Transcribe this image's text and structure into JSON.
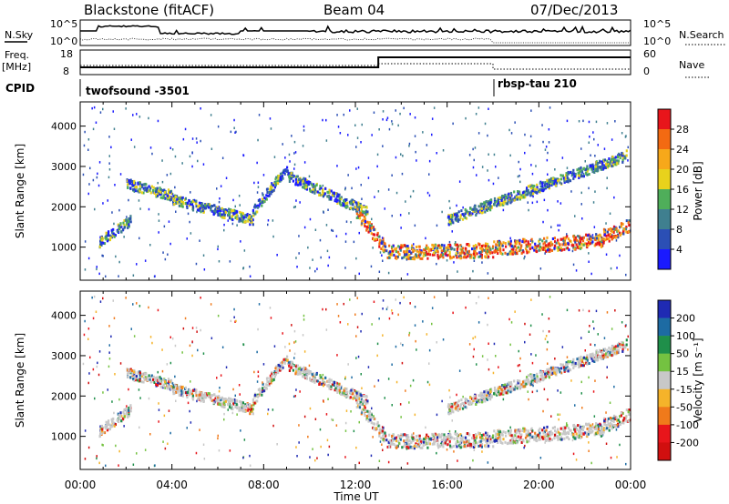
{
  "header": {
    "site": "Blackstone (fitACF)",
    "beam": "Beam 04",
    "date": "07/Dec/2013"
  },
  "strips": {
    "nsky_label": "N.Sky",
    "nsearch_label": "N.Search",
    "noise_ticks": [
      "10^5",
      "10^0"
    ],
    "freq_label_1": "Freq.",
    "freq_label_2": "[MHz]",
    "freq_ticks": [
      "18",
      "8"
    ],
    "nave_label": "Nave",
    "nave_ticks": [
      "60",
      "0"
    ],
    "cpid_label": "CPID",
    "cpid_segments": [
      {
        "name": "twofsound -3501",
        "start_hour": 0,
        "end_hour": 18
      },
      {
        "name": "rbsp-tau 210",
        "start_hour": 18,
        "end_hour": 24
      }
    ],
    "freq_step_hour": 13,
    "nave_step_hour": 18
  },
  "chart_data": [
    {
      "type": "heatmap",
      "name": "power",
      "ylabel": "Slant Range [km]",
      "yticks": [
        1000,
        2000,
        3000,
        4000
      ],
      "ylim": [
        180,
        4600
      ],
      "xlim": [
        0,
        24
      ],
      "colorbar_label": "Power [dB]",
      "colorbar_ticks": [
        4,
        8,
        12,
        16,
        20,
        24,
        28
      ],
      "colorbar_range": [
        0,
        32
      ],
      "colors": [
        "#1a1aff",
        "#2b4fb5",
        "#3f7f8f",
        "#4fae5a",
        "#e8d21c",
        "#f7a81a",
        "#f36a12",
        "#e8151b"
      ]
    },
    {
      "type": "heatmap",
      "name": "velocity",
      "ylabel": "Slant Range [km]",
      "yticks": [
        1000,
        2000,
        3000,
        4000
      ],
      "ylim": [
        180,
        4600
      ],
      "xlim": [
        0,
        24
      ],
      "xlabel": "Time UT",
      "xtick_labels": [
        "00:00",
        "04:00",
        "08:00",
        "12:00",
        "16:00",
        "20:00",
        "00:00"
      ],
      "colorbar_label": "Velocity [m s⁻¹]",
      "colorbar_ticks": [
        "200",
        "100",
        "50",
        "15",
        "-15",
        "-50",
        "-100",
        "-200"
      ],
      "colors": [
        "#1f2ab3",
        "#1d6ba3",
        "#1f8f4a",
        "#74c241",
        "#c8c8c8",
        "#f5b32a",
        "#f07a1b",
        "#e8151b",
        "#d10f0f"
      ]
    }
  ],
  "scatter_bands": [
    {
      "start": 0.8,
      "end": 2.2,
      "r0": 1150,
      "r1": 1700
    },
    {
      "start": 2.0,
      "end": 4.0,
      "r0": 2600,
      "r1": 2300
    },
    {
      "start": 4.0,
      "end": 7.5,
      "r0": 2200,
      "r1": 1700
    },
    {
      "start": 7.5,
      "end": 9.0,
      "r0": 1900,
      "r1": 3000
    },
    {
      "start": 9.0,
      "end": 12.5,
      "r0": 2800,
      "r1": 1900
    },
    {
      "start": 12.0,
      "end": 13.3,
      "r0": 1900,
      "r1": 1000
    },
    {
      "start": 13.3,
      "end": 18.0,
      "r0": 900,
      "r1": 950
    },
    {
      "start": 18.0,
      "end": 22.8,
      "r0": 1000,
      "r1": 1200
    },
    {
      "start": 22.8,
      "end": 23.9,
      "r0": 1300,
      "r1": 1550
    },
    {
      "start": 16.0,
      "end": 23.8,
      "r0": 1700,
      "r1": 3300
    }
  ]
}
